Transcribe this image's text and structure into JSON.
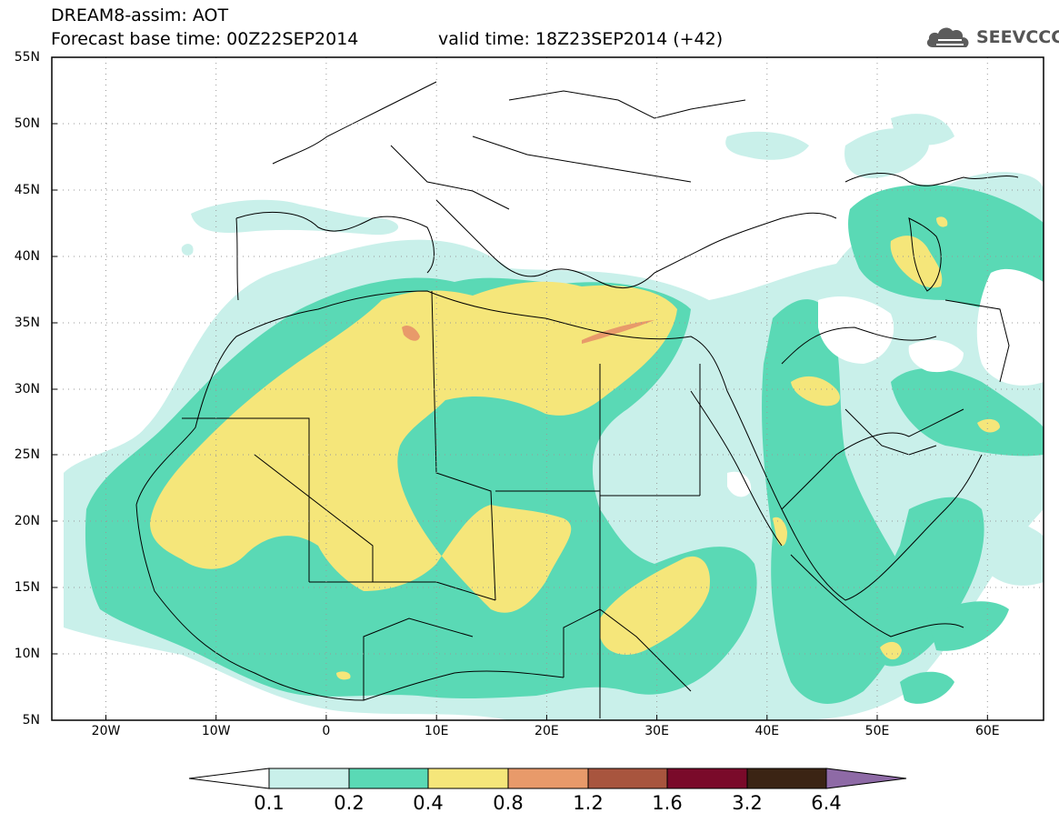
{
  "header": {
    "title": "DREAM8-assim: AOT",
    "forecast_base": "Forecast base time: 00Z22SEP2014",
    "valid_time": "valid time: 18Z23SEP2014 (+42)",
    "logo_text": "SEEVCCC"
  },
  "axes": {
    "lat_labels": [
      "55N",
      "50N",
      "45N",
      "40N",
      "35N",
      "30N",
      "25N",
      "20N",
      "15N",
      "10N",
      "5N"
    ],
    "lon_labels": [
      "20W",
      "10W",
      "0",
      "10E",
      "20E",
      "30E",
      "40E",
      "50E",
      "60E"
    ]
  },
  "colorbar": {
    "labels": [
      "0.1",
      "0.2",
      "0.4",
      "0.8",
      "1.2",
      "1.6",
      "3.2",
      "6.4"
    ],
    "colors": [
      "#ffffff",
      "#c9f0ea",
      "#5ad9b5",
      "#f5e67a",
      "#e89a6a",
      "#a8553e",
      "#7a0a2a",
      "#3b2414",
      "#8e6aa6"
    ]
  },
  "map_data": {
    "extent": {
      "lon": [
        -25,
        65
      ],
      "lat": [
        5,
        55
      ]
    },
    "field": "AOT",
    "levels": [
      0.1,
      0.2,
      0.4,
      0.8,
      1.2,
      1.6,
      3.2,
      6.4
    ]
  }
}
